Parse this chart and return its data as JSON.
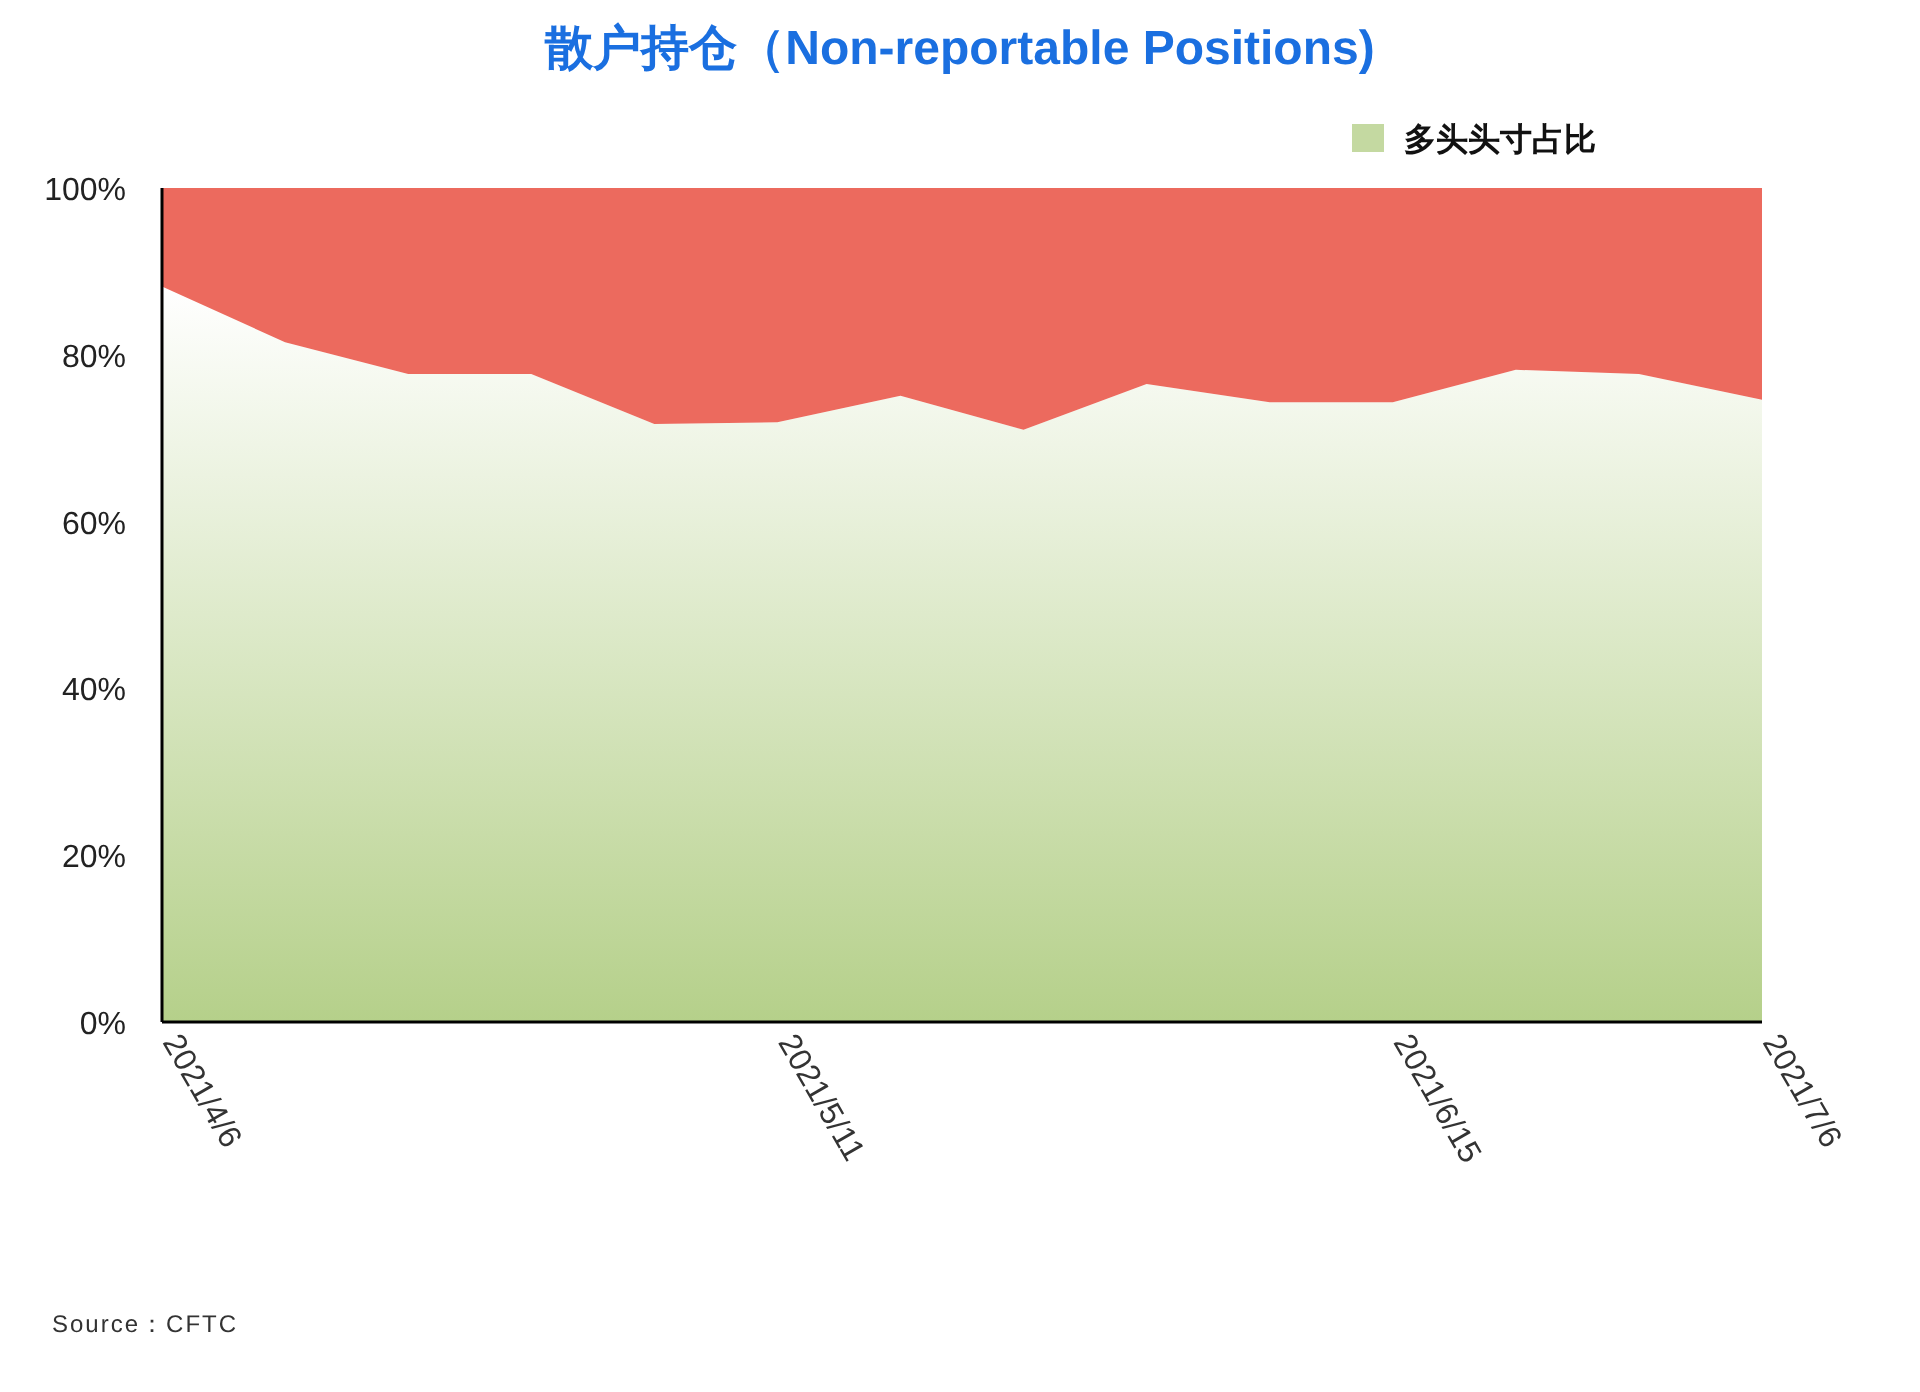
{
  "chart_data": {
    "type": "area",
    "title": "散户持仓（Non-reportable Positions)",
    "stacked": true,
    "categories": [
      "2021/4/6",
      null,
      null,
      null,
      null,
      "2021/5/11",
      null,
      null,
      null,
      null,
      "2021/6/15",
      null,
      null,
      "2021/7/6"
    ],
    "series": [
      {
        "name": "多头头寸占比",
        "color": "#b5d08a",
        "values": [
          88.2,
          81.5,
          77.7,
          77.7,
          71.7,
          71.9,
          75.1,
          71.0,
          76.5,
          74.3,
          74.3,
          78.2,
          77.7,
          74.6
        ]
      },
      {
        "color": "#ec6a5e",
        "values": [
          11.8,
          18.5,
          22.3,
          22.3,
          28.3,
          28.1,
          24.9,
          29.0,
          23.5,
          25.7,
          25.7,
          21.8,
          22.3,
          25.4
        ]
      }
    ],
    "ylim": [
      0,
      100
    ],
    "yticks": [
      {
        "value": 0,
        "label": "0%"
      },
      {
        "value": 20,
        "label": "20%"
      },
      {
        "value": 40,
        "label": "40%"
      },
      {
        "value": 60,
        "label": "60%"
      },
      {
        "value": 80,
        "label": "80%"
      },
      {
        "value": 100,
        "label": "100%"
      }
    ],
    "legend": "top right",
    "annotations": [
      "Source：CFTC"
    ]
  }
}
